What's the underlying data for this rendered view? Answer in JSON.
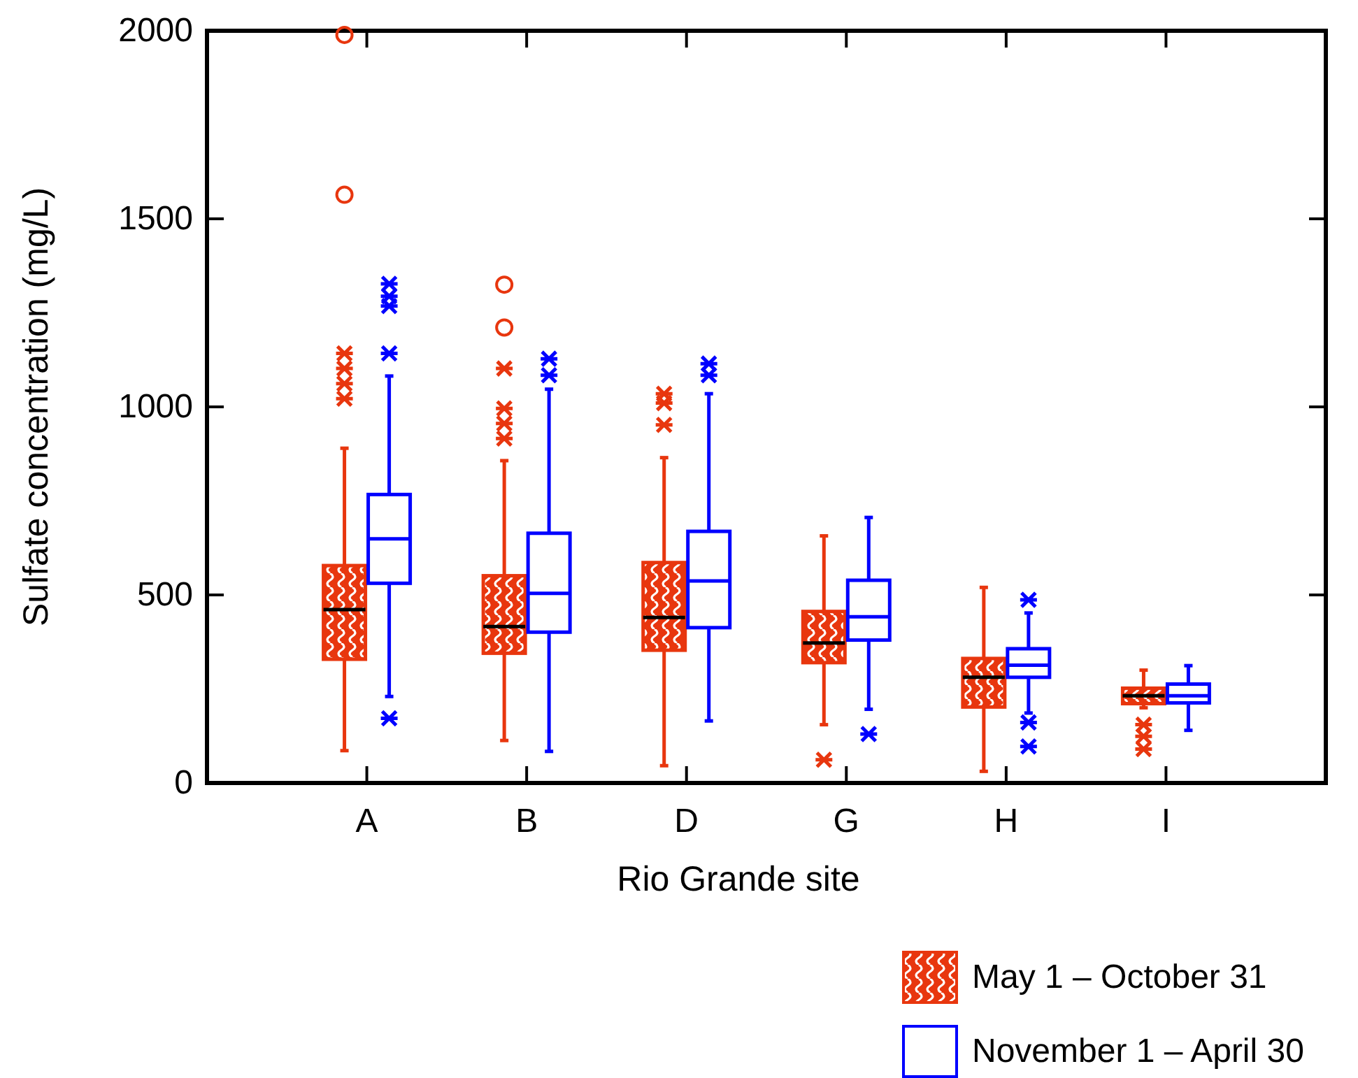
{
  "chart_data": {
    "type": "box",
    "xlabel": "Rio Grande site",
    "ylabel": "Sulfate concentration (mg/L)",
    "categories": [
      "A",
      "B",
      "D",
      "G",
      "H",
      "I"
    ],
    "ylim": [
      0,
      2000
    ],
    "yticks": [
      0,
      500,
      1000,
      1500,
      2000
    ],
    "grid": false,
    "legend": "bottom right",
    "series": [
      {
        "name": "May 1 – October 31",
        "color": "#e8360e",
        "boxes": [
          {
            "low": 86,
            "q1": 329,
            "median": 461,
            "q3": 578,
            "high": 890,
            "outliers": [
              1989,
              1564,
              1142,
              1102,
              1062,
              1022
            ]
          },
          {
            "low": 113,
            "q1": 345,
            "median": 416,
            "q3": 551,
            "high": 857,
            "outliers": [
              1325,
              1211,
              1102,
              996,
              956,
              916
            ]
          },
          {
            "low": 46,
            "q1": 353,
            "median": 440,
            "q3": 586,
            "high": 865,
            "outliers": [
              1035,
              1010,
              952
            ]
          },
          {
            "low": 155,
            "q1": 320,
            "median": 372,
            "q3": 456,
            "high": 657,
            "outliers": [
              62
            ]
          },
          {
            "low": 31,
            "q1": 202,
            "median": 281,
            "q3": 331,
            "high": 520
          },
          {
            "low": 200,
            "q1": 211,
            "median": 232,
            "q3": 252,
            "high": 300,
            "outliers": [
              155,
              124,
              90
            ]
          }
        ]
      },
      {
        "name": "November 1 – April 30",
        "color": "#0000ff",
        "boxes": [
          {
            "low": 230,
            "q1": 531,
            "median": 649,
            "q3": 767,
            "high": 1082,
            "outliers": [
              1327,
              1294,
              1268,
              1142,
              172
            ]
          },
          {
            "low": 84,
            "q1": 401,
            "median": 504,
            "q3": 664,
            "high": 1047,
            "outliers": [
              1128,
              1084
            ]
          },
          {
            "low": 165,
            "q1": 413,
            "median": 537,
            "q3": 669,
            "high": 1035,
            "outliers": [
              1115,
              1084
            ]
          },
          {
            "low": 196,
            "q1": 380,
            "median": 442,
            "q3": 539,
            "high": 706,
            "outliers": [
              130
            ]
          },
          {
            "low": 186,
            "q1": 281,
            "median": 313,
            "q3": 357,
            "high": 452,
            "outliers": [
              487,
              161,
              97
            ]
          },
          {
            "low": 140,
            "q1": 213,
            "median": 232,
            "q3": 263,
            "high": 312
          }
        ]
      }
    ]
  }
}
